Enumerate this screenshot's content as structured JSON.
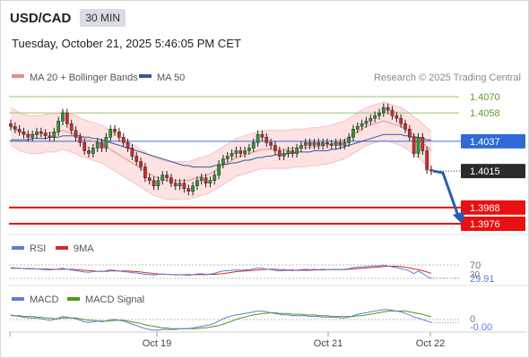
{
  "header": {
    "symbol": "USD/CAD",
    "timeframe": "30 MIN",
    "datetime": "Tuesday, October 21, 2025 5:46:05 PM CET"
  },
  "legend": {
    "bollinger_label": "MA 20 + Bollinger Bands",
    "ma50_label": "MA 50",
    "credit": "Research © 2025 Trading Central",
    "rsi_label": "RSI",
    "rsi_ma_label": "9MA",
    "macd_label": "MACD",
    "macd_signal_label": "MACD Signal"
  },
  "colors": {
    "bollinger": "#f08a8a",
    "band_fill": "#fde2e2",
    "ma50": "#2e5a9c",
    "resistance_green": "#9bc46a",
    "pivot_blue": "#3a6fd8",
    "support_red": "#e81010",
    "current_dark": "#2b2b2b",
    "candle_up": "#2f9a33",
    "candle_down": "#d42a2a",
    "arrow": "#2a5db0",
    "rsi": "#5b7fd6",
    "rsi_ma": "#d42a2a",
    "macd": "#5b7fd6",
    "macd_signal": "#4a9a16"
  },
  "chart_data": {
    "type": "candlestick",
    "price_axis": {
      "ylim": [
        1.397,
        1.408
      ]
    },
    "levels": [
      {
        "value": 1.407,
        "label": "1.4070",
        "role": "resistance",
        "color": "#9bc46a"
      },
      {
        "value": 1.4058,
        "label": "1.4058",
        "role": "resistance",
        "color": "#9bc46a"
      },
      {
        "value": 1.4037,
        "label": "1.4037",
        "role": "pivot",
        "color": "#3a6fd8"
      },
      {
        "value": 1.4015,
        "label": "1.4015",
        "role": "current",
        "color": "#2b2b2b"
      },
      {
        "value": 1.3988,
        "label": "1.3988",
        "role": "support",
        "color": "#e81010"
      },
      {
        "value": 1.3976,
        "label": "1.3976",
        "role": "support",
        "color": "#e81010"
      }
    ],
    "x_ticks": [
      "Oct 19",
      "Oct 21",
      "Oct 22"
    ],
    "close": [
      1.4048,
      1.4046,
      1.4044,
      1.4042,
      1.404,
      1.4042,
      1.4044,
      1.4043,
      1.4041,
      1.404,
      1.4044,
      1.4052,
      1.4058,
      1.405,
      1.4045,
      1.404,
      1.4036,
      1.403,
      1.4028,
      1.4032,
      1.4036,
      1.4032,
      1.404,
      1.4046,
      1.4044,
      1.404,
      1.4036,
      1.4032,
      1.4026,
      1.4022,
      1.4018,
      1.401,
      1.4008,
      1.4004,
      1.4008,
      1.4012,
      1.401,
      1.4006,
      1.4004,
      1.4006,
      1.4002,
      1.4,
      1.4004,
      1.4008,
      1.401,
      1.4006,
      1.4008,
      1.4012,
      1.402,
      1.4024,
      1.4026,
      1.4028,
      1.403,
      1.4028,
      1.403,
      1.4032,
      1.4036,
      1.4042,
      1.404,
      1.4036,
      1.4034,
      1.403,
      1.4026,
      1.4028,
      1.403,
      1.4028,
      1.4032,
      1.4034,
      1.4036,
      1.4034,
      1.4036,
      1.4034,
      1.4036,
      1.4035,
      1.4034,
      1.4036,
      1.4034,
      1.4036,
      1.404,
      1.4046,
      1.4048,
      1.405,
      1.4052,
      1.4054,
      1.4056,
      1.4058,
      1.4062,
      1.406,
      1.4056,
      1.4054,
      1.405,
      1.4046,
      1.404,
      1.4028,
      1.404,
      1.403,
      1.4016,
      1.4015
    ],
    "ma20": [
      1.4048,
      1.4046,
      1.4044,
      1.4043,
      1.4042,
      1.4042,
      1.4042,
      1.4042,
      1.4043,
      1.4043,
      1.4043,
      1.4044,
      1.4045,
      1.4044,
      1.4043,
      1.4042,
      1.404,
      1.4039,
      1.4038,
      1.4037,
      1.4036,
      1.4035,
      1.4033,
      1.4031,
      1.4029,
      1.4027,
      1.4025,
      1.4023,
      1.4021,
      1.4019,
      1.4017,
      1.4015,
      1.4013,
      1.4011,
      1.401,
      1.4009,
      1.4008,
      1.4008,
      1.4008,
      1.4008,
      1.4008,
      1.4008,
      1.4009,
      1.401,
      1.4011,
      1.4012,
      1.4013,
      1.4015,
      1.4017,
      1.4019,
      1.4021,
      1.4023,
      1.4025,
      1.4026,
      1.4027,
      1.4028,
      1.4029,
      1.403,
      1.4031,
      1.4031,
      1.4031,
      1.4031,
      1.4031,
      1.4031,
      1.4031,
      1.4032,
      1.4032,
      1.4032,
      1.4032,
      1.4033,
      1.4033,
      1.4033,
      1.4034,
      1.4034,
      1.4035,
      1.4036,
      1.4037,
      1.4038,
      1.404,
      1.4042,
      1.4044,
      1.4046,
      1.4048,
      1.4049,
      1.405,
      1.4051,
      1.4052,
      1.4051,
      1.405,
      1.4049,
      1.4048,
      1.4046,
      1.4044,
      1.4041,
      1.4039,
      1.4036,
      1.4033,
      1.403
    ],
    "ma50": [
      1.4038,
      1.4038,
      1.4038,
      1.4038,
      1.4038,
      1.4039,
      1.4039,
      1.4039,
      1.4039,
      1.404,
      1.404,
      1.404,
      1.4041,
      1.4041,
      1.4041,
      1.4041,
      1.4041,
      1.404,
      1.404,
      1.4039,
      1.4039,
      1.4038,
      1.4037,
      1.4036,
      1.4035,
      1.4034,
      1.4033,
      1.4032,
      1.4031,
      1.403,
      1.4029,
      1.4028,
      1.4027,
      1.4026,
      1.4025,
      1.4024,
      1.4023,
      1.4022,
      1.4021,
      1.402,
      1.4019,
      1.4019,
      1.4018,
      1.4018,
      1.4018,
      1.4018,
      1.4018,
      1.4019,
      1.4019,
      1.402,
      1.402,
      1.4021,
      1.4021,
      1.4022,
      1.4023,
      1.4023,
      1.4024,
      1.4025,
      1.4025,
      1.4026,
      1.4026,
      1.4027,
      1.4027,
      1.4027,
      1.4028,
      1.4028,
      1.4029,
      1.4029,
      1.4029,
      1.4029,
      1.403,
      1.403,
      1.403,
      1.403,
      1.4031,
      1.4031,
      1.4032,
      1.4033,
      1.4034,
      1.4035,
      1.4036,
      1.4037,
      1.4038,
      1.4039,
      1.404,
      1.4041,
      1.4042,
      1.4042,
      1.4042,
      1.4042,
      1.4042,
      1.4041,
      1.4041,
      1.404,
      1.404,
      1.4039,
      1.4038,
      1.4038
    ],
    "band_width": 0.0014,
    "forecast": {
      "from": 1.4015,
      "to": 1.3976,
      "direction": "down"
    },
    "rsi": {
      "ylim": [
        20,
        80
      ],
      "levels": [
        {
          "value": 70,
          "label": "70"
        },
        {
          "value": 30,
          "label": "30"
        }
      ],
      "current_label": "29.91",
      "values": [
        62,
        61,
        60,
        59,
        58,
        58,
        58,
        57,
        56,
        55,
        56,
        58,
        60,
        57,
        55,
        53,
        51,
        49,
        48,
        50,
        51,
        50,
        53,
        55,
        54,
        52,
        50,
        49,
        47,
        46,
        44,
        42,
        41,
        40,
        42,
        43,
        42,
        41,
        40,
        41,
        40,
        39,
        41,
        43,
        44,
        42,
        43,
        45,
        49,
        52,
        53,
        54,
        55,
        54,
        55,
        56,
        58,
        61,
        60,
        57,
        56,
        54,
        52,
        53,
        54,
        53,
        55,
        56,
        57,
        56,
        57,
        56,
        57,
        56,
        56,
        57,
        56,
        57,
        59,
        62,
        63,
        64,
        65,
        66,
        67,
        67,
        69,
        67,
        64,
        62,
        59,
        56,
        52,
        44,
        52,
        45,
        35,
        30
      ],
      "ma": [
        60,
        60,
        60,
        59,
        59,
        59,
        58,
        58,
        58,
        57,
        57,
        57,
        57,
        57,
        57,
        56,
        55,
        54,
        53,
        52,
        51,
        51,
        51,
        52,
        52,
        52,
        52,
        52,
        51,
        50,
        49,
        47,
        46,
        44,
        43,
        42,
        42,
        41,
        41,
        41,
        41,
        41,
        41,
        41,
        41,
        41,
        42,
        42,
        43,
        44,
        46,
        48,
        50,
        51,
        52,
        53,
        54,
        55,
        56,
        57,
        57,
        57,
        56,
        56,
        55,
        55,
        54,
        54,
        54,
        54,
        55,
        55,
        55,
        56,
        56,
        56,
        56,
        56,
        57,
        58,
        59,
        60,
        61,
        62,
        63,
        64,
        65,
        66,
        66,
        66,
        65,
        63,
        61,
        58,
        56,
        53,
        49,
        45
      ]
    },
    "macd": {
      "zero_label": "0",
      "current_label": "-0.00",
      "values": [
        0.0006,
        0.0005,
        0.0004,
        0.0003,
        0.0002,
        0.0002,
        0.0002,
        0.0001,
        0.0,
        -0.0001,
        0.0,
        0.0002,
        0.0004,
        0.0003,
        0.0002,
        0.0001,
        -0.0001,
        -0.0003,
        -0.0004,
        -0.0003,
        -0.0002,
        -0.0003,
        -0.0002,
        0.0,
        0.0,
        -0.0001,
        -0.0002,
        -0.0004,
        -0.0006,
        -0.0008,
        -0.001,
        -0.0012,
        -0.0013,
        -0.0014,
        -0.0014,
        -0.0013,
        -0.0013,
        -0.0013,
        -0.0013,
        -0.0012,
        -0.0012,
        -0.0012,
        -0.0011,
        -0.001,
        -0.0009,
        -0.0008,
        -0.0007,
        -0.0005,
        -0.0002,
        0.0001,
        0.0003,
        0.0005,
        0.0006,
        0.0007,
        0.0008,
        0.0009,
        0.001,
        0.0011,
        0.0011,
        0.001,
        0.0009,
        0.0008,
        0.0007,
        0.0006,
        0.0006,
        0.0005,
        0.0005,
        0.0005,
        0.0005,
        0.0004,
        0.0004,
        0.0004,
        0.0003,
        0.0003,
        0.0003,
        0.0003,
        0.0002,
        0.0002,
        0.0003,
        0.0005,
        0.0007,
        0.0008,
        0.0009,
        0.001,
        0.0011,
        0.0012,
        0.0013,
        0.0013,
        0.0012,
        0.0011,
        0.001,
        0.0008,
        0.0006,
        0.0003,
        0.0002,
        0.0,
        -0.0002,
        -0.0004
      ],
      "signal": [
        0.0005,
        0.0005,
        0.0005,
        0.0004,
        0.0004,
        0.0004,
        0.0003,
        0.0003,
        0.0002,
        0.0002,
        0.0001,
        0.0001,
        0.0002,
        0.0002,
        0.0002,
        0.0002,
        0.0001,
        0.0,
        -0.0001,
        -0.0001,
        -0.0002,
        -0.0002,
        -0.0002,
        -0.0002,
        -0.0001,
        -0.0001,
        -0.0001,
        -0.0002,
        -0.0003,
        -0.0004,
        -0.0005,
        -0.0007,
        -0.0008,
        -0.0009,
        -0.001,
        -0.0011,
        -0.0011,
        -0.0012,
        -0.0012,
        -0.0012,
        -0.0012,
        -0.0012,
        -0.0012,
        -0.0012,
        -0.0011,
        -0.0011,
        -0.001,
        -0.0009,
        -0.0008,
        -0.0006,
        -0.0004,
        -0.0002,
        0.0,
        0.0002,
        0.0003,
        0.0005,
        0.0006,
        0.0007,
        0.0008,
        0.0008,
        0.0009,
        0.0009,
        0.0008,
        0.0008,
        0.0008,
        0.0007,
        0.0007,
        0.0007,
        0.0006,
        0.0006,
        0.0006,
        0.0005,
        0.0005,
        0.0005,
        0.0004,
        0.0004,
        0.0004,
        0.0004,
        0.0004,
        0.0004,
        0.0005,
        0.0005,
        0.0006,
        0.0007,
        0.0008,
        0.0009,
        0.001,
        0.0011,
        0.0011,
        0.0011,
        0.0011,
        0.0011,
        0.001,
        0.0009,
        0.0008,
        0.0007,
        0.0005,
        0.0004
      ]
    }
  }
}
